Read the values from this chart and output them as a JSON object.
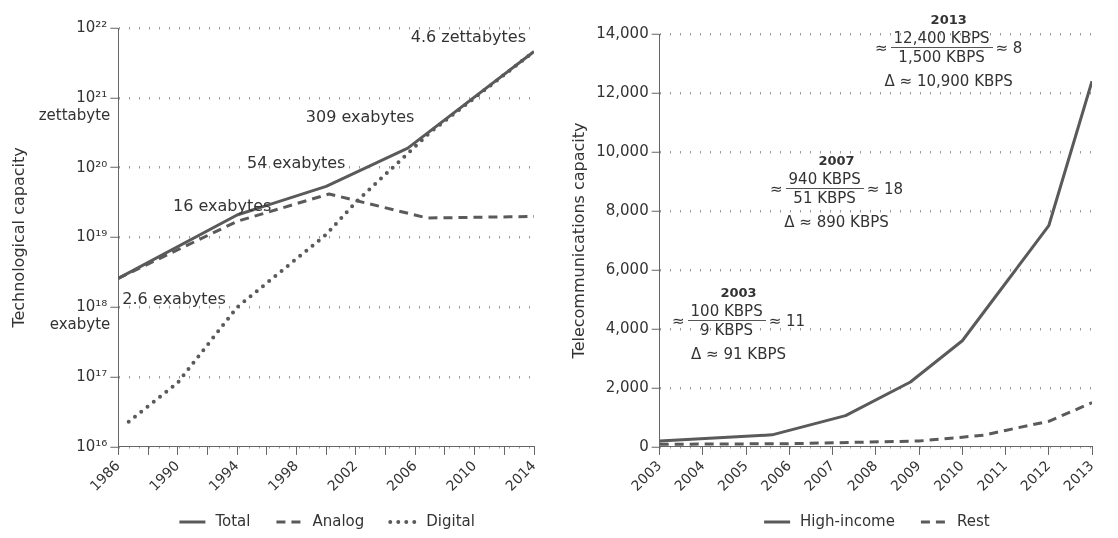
{
  "chart_data": [
    {
      "type": "line",
      "ylabel": "Technological capacity",
      "log": "y",
      "grid": "y",
      "legend": "bottom",
      "marker": "none",
      "xlim": [
        1986,
        2014
      ],
      "xticks": [
        1986,
        {
          "value": 1988,
          "label": null
        },
        1990,
        {
          "value": 1992,
          "label": null
        },
        1994,
        {
          "value": 1996,
          "label": null
        },
        1998,
        {
          "value": 2000,
          "label": null
        },
        2002,
        {
          "value": 2004,
          "label": null
        },
        2006,
        {
          "value": 2008,
          "label": null
        },
        2010,
        {
          "value": 2012,
          "label": null
        },
        2014
      ],
      "ylim": [
        1e+16,
        1e+22
      ],
      "yticks": [
        {
          "value": 1e+16,
          "label": "10¹⁶"
        },
        {
          "value": 1e+17,
          "label": "10¹⁷"
        },
        {
          "value": 1e+18,
          "label": "10¹⁸"
        },
        {
          "value": 1e+19,
          "label": "10¹⁹"
        },
        {
          "value": 1e+20,
          "label": "10²⁰"
        },
        {
          "value": 1e+21,
          "label": "10²¹"
        },
        {
          "value": 1e+22,
          "label": "10²²"
        }
      ],
      "series": [
        {
          "name": "Total",
          "color": "#5a5a5a",
          "line_style": "solid",
          "x": [
            1986,
            1994,
            2000,
            2005.5,
            2014
          ],
          "values": [
            2.6e+18,
            2.1e+19,
            5.4e+19,
            1.9e+20,
            4.6e+21
          ]
        },
        {
          "name": "Analog",
          "color": "#5a5a5a",
          "line_style": "dashed",
          "x": [
            1986,
            1994,
            2000.2,
            2006.8,
            2014
          ],
          "values": [
            2.6e+18,
            1.7e+19,
            4.2e+19,
            1.9e+19,
            2e+19
          ]
        },
        {
          "name": "Digital",
          "color": "#5a5a5a",
          "line_style": "dotted",
          "x": [
            1986.7,
            1990,
            1994,
            2000,
            2002,
            2005.5,
            2007,
            2010,
            2014
          ],
          "values": [
            2.3e+16,
            8.3e+16,
            1e+18,
            1.1e+19,
            3.2e+19,
            1.6e+20,
            3.2e+20,
            1e+21,
            4.6e+21
          ]
        }
      ],
      "annotations": [
        {
          "text": "2.6 exabytes",
          "x": 1986,
          "y": 2.6e+18
        },
        {
          "text": "16 exabytes",
          "x": 1993,
          "y": 1.6e+19
        },
        {
          "text": "54 exabytes",
          "x": 2000,
          "y": 5.4e+19
        },
        {
          "text": "309 exabytes",
          "x": 2007,
          "y": 3.09e+20
        },
        {
          "text": "4.6 zettabytes",
          "x": 2014,
          "y": 4.6e+21
        },
        "exabyte",
        "zettabyte"
      ]
    },
    {
      "type": "line",
      "ylabel": "Telecommunications capacity",
      "grid": "y",
      "legend": "bottom",
      "marker": "none",
      "xlim": [
        2003,
        2013
      ],
      "xticks": [
        2003,
        2004,
        2005,
        2006,
        2007,
        2008,
        2009,
        2010,
        2011,
        2012,
        2013
      ],
      "ylim": [
        0,
        14000
      ],
      "yticks": [
        0,
        {
          "value": 2000,
          "label": "2,000"
        },
        {
          "value": 4000,
          "label": "4,000"
        },
        {
          "value": 6000,
          "label": "6,000"
        },
        {
          "value": 8000,
          "label": "8,000"
        },
        {
          "value": 10000,
          "label": "10,000"
        },
        {
          "value": 12000,
          "label": "12,000"
        },
        {
          "value": 14000,
          "label": "14,000"
        }
      ],
      "series": [
        {
          "name": "High-income",
          "color": "#5a5a5a",
          "line_style": "solid",
          "x": [
            2003,
            2005.6,
            2007.3,
            2008.8,
            2010,
            2011,
            2012,
            2013
          ],
          "values": [
            200,
            410,
            1060,
            2200,
            3600,
            5550,
            7500,
            12400
          ]
        },
        {
          "name": "Rest",
          "color": "#5a5a5a",
          "line_style": "dashed",
          "x": [
            2003,
            2006,
            2009,
            2010,
            2010.5,
            2011,
            2012,
            2013
          ],
          "values": [
            90,
            110,
            200,
            330,
            400,
            560,
            870,
            1500
          ]
        }
      ],
      "annotations": [
        "2003",
        "≈",
        "100 KBPS",
        "9 KBPS",
        "≈ 11",
        "Δ ≈ 91 KBPS",
        "2007",
        "≈",
        "940 KBPS",
        "51 KBPS",
        "≈ 18",
        "Δ ≈ 890 KBPS",
        "2013",
        "≈",
        "12,400 KBPS",
        "1,500 KBPS",
        "≈ 8",
        "Δ ≈ 10,900 KBPS"
      ]
    }
  ]
}
